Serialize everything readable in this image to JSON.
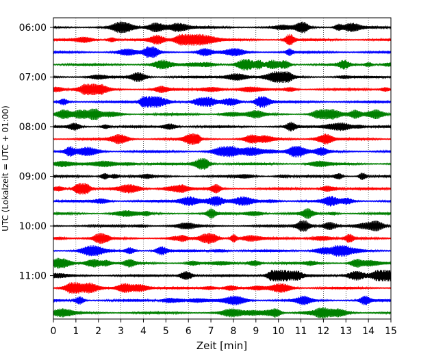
{
  "chart_data": {
    "type": "line",
    "title": "",
    "xlabel": "Zeit  [min]",
    "ylabel": "UTC (Lokalzeit = UTC + 01:00)",
    "xlim": [
      0,
      15
    ],
    "x_ticks": [
      "0",
      "1",
      "2",
      "3",
      "4",
      "5",
      "6",
      "7",
      "8",
      "9",
      "10",
      "11",
      "12",
      "13",
      "14",
      "15"
    ],
    "y_tick_labels": [
      "06:00",
      "07:00",
      "08:00",
      "09:00",
      "10:00",
      "11:00"
    ],
    "grid": true,
    "trace_interval_min": 15,
    "trace_colors": [
      "#000000",
      "#ff0000",
      "#0000ff",
      "#008000"
    ],
    "traces": [
      {
        "start": "06:00",
        "color": "#000000"
      },
      {
        "start": "06:15",
        "color": "#ff0000"
      },
      {
        "start": "06:30",
        "color": "#0000ff"
      },
      {
        "start": "06:45",
        "color": "#008000"
      },
      {
        "start": "07:00",
        "color": "#000000"
      },
      {
        "start": "07:15",
        "color": "#ff0000"
      },
      {
        "start": "07:30",
        "color": "#0000ff"
      },
      {
        "start": "07:45",
        "color": "#008000"
      },
      {
        "start": "08:00",
        "color": "#000000"
      },
      {
        "start": "08:15",
        "color": "#ff0000"
      },
      {
        "start": "08:30",
        "color": "#0000ff"
      },
      {
        "start": "08:45",
        "color": "#008000"
      },
      {
        "start": "09:00",
        "color": "#000000"
      },
      {
        "start": "09:15",
        "color": "#ff0000"
      },
      {
        "start": "09:30",
        "color": "#0000ff"
      },
      {
        "start": "09:45",
        "color": "#008000"
      },
      {
        "start": "10:00",
        "color": "#000000"
      },
      {
        "start": "10:15",
        "color": "#ff0000"
      },
      {
        "start": "10:30",
        "color": "#0000ff"
      },
      {
        "start": "10:45",
        "color": "#008000"
      },
      {
        "start": "11:00",
        "color": "#000000"
      },
      {
        "start": "11:15",
        "color": "#ff0000"
      },
      {
        "start": "11:30",
        "color": "#0000ff"
      },
      {
        "start": "11:45",
        "color": "#008000"
      }
    ]
  }
}
